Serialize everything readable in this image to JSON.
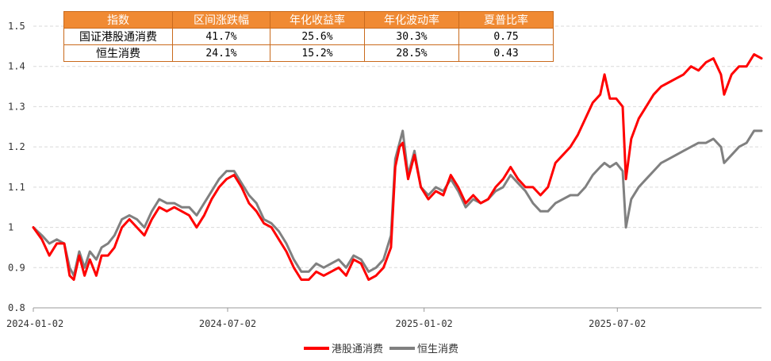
{
  "table": {
    "headers": [
      "指数",
      "区间涨跌幅",
      "年化收益率",
      "年化波动率",
      "夏普比率"
    ],
    "rows": [
      [
        "国证港股通消费",
        "41.7%",
        "25.6%",
        "30.3%",
        "0.75"
      ],
      [
        "恒生消费",
        "24.1%",
        "15.2%",
        "28.5%",
        "0.43"
      ]
    ],
    "header_color": "#f08a33"
  },
  "chart_data": {
    "type": "line",
    "ylim": [
      0.8,
      1.5
    ],
    "yticks": [
      "0.8",
      "0.9",
      "1",
      "1.1",
      "1.2",
      "1.3",
      "1.4",
      "1.5"
    ],
    "xticks": [
      "2024-01-02",
      "2024-07-02",
      "2025-01-02",
      "2025-07-02"
    ],
    "grid": true,
    "legend_position": "bottom",
    "series": [
      {
        "name": "港股通消费",
        "color": "#ff0000",
        "points": [
          [
            "2024-01-02",
            1.0
          ],
          [
            "2024-01-10",
            0.97
          ],
          [
            "2024-01-17",
            0.93
          ],
          [
            "2024-01-24",
            0.96
          ],
          [
            "2024-01-31",
            0.96
          ],
          [
            "2024-02-05",
            0.88
          ],
          [
            "2024-02-09",
            0.87
          ],
          [
            "2024-02-14",
            0.93
          ],
          [
            "2024-02-19",
            0.88
          ],
          [
            "2024-02-24",
            0.92
          ],
          [
            "2024-03-01",
            0.88
          ],
          [
            "2024-03-06",
            0.93
          ],
          [
            "2024-03-12",
            0.93
          ],
          [
            "2024-03-18",
            0.95
          ],
          [
            "2024-03-25",
            1.0
          ],
          [
            "2024-04-01",
            1.02
          ],
          [
            "2024-04-08",
            1.0
          ],
          [
            "2024-04-15",
            0.98
          ],
          [
            "2024-04-22",
            1.02
          ],
          [
            "2024-04-29",
            1.05
          ],
          [
            "2024-05-06",
            1.04
          ],
          [
            "2024-05-13",
            1.05
          ],
          [
            "2024-05-20",
            1.04
          ],
          [
            "2024-05-27",
            1.03
          ],
          [
            "2024-06-03",
            1.0
          ],
          [
            "2024-06-10",
            1.03
          ],
          [
            "2024-06-17",
            1.07
          ],
          [
            "2024-06-24",
            1.1
          ],
          [
            "2024-07-01",
            1.12
          ],
          [
            "2024-07-08",
            1.13
          ],
          [
            "2024-07-15",
            1.1
          ],
          [
            "2024-07-22",
            1.06
          ],
          [
            "2024-07-29",
            1.04
          ],
          [
            "2024-08-05",
            1.01
          ],
          [
            "2024-08-12",
            1.0
          ],
          [
            "2024-08-19",
            0.97
          ],
          [
            "2024-08-26",
            0.94
          ],
          [
            "2024-09-02",
            0.9
          ],
          [
            "2024-09-09",
            0.87
          ],
          [
            "2024-09-16",
            0.87
          ],
          [
            "2024-09-23",
            0.89
          ],
          [
            "2024-09-30",
            0.88
          ],
          [
            "2024-10-07",
            0.89
          ],
          [
            "2024-10-14",
            0.9
          ],
          [
            "2024-10-21",
            0.88
          ],
          [
            "2024-10-28",
            0.92
          ],
          [
            "2024-11-04",
            0.91
          ],
          [
            "2024-11-11",
            0.87
          ],
          [
            "2024-11-18",
            0.88
          ],
          [
            "2024-11-25",
            0.9
          ],
          [
            "2024-12-02",
            0.95
          ],
          [
            "2024-12-06",
            1.15
          ],
          [
            "2024-12-10",
            1.2
          ],
          [
            "2024-12-13",
            1.21
          ],
          [
            "2024-12-18",
            1.12
          ],
          [
            "2024-12-24",
            1.18
          ],
          [
            "2024-12-30",
            1.1
          ],
          [
            "2025-01-06",
            1.07
          ],
          [
            "2025-01-13",
            1.09
          ],
          [
            "2025-01-20",
            1.08
          ],
          [
            "2025-01-27",
            1.13
          ],
          [
            "2025-02-03",
            1.1
          ],
          [
            "2025-02-10",
            1.06
          ],
          [
            "2025-02-17",
            1.08
          ],
          [
            "2025-02-24",
            1.06
          ],
          [
            "2025-03-03",
            1.07
          ],
          [
            "2025-03-10",
            1.1
          ],
          [
            "2025-03-17",
            1.12
          ],
          [
            "2025-03-24",
            1.15
          ],
          [
            "2025-03-31",
            1.12
          ],
          [
            "2025-04-07",
            1.1
          ],
          [
            "2025-04-14",
            1.1
          ],
          [
            "2025-04-21",
            1.08
          ],
          [
            "2025-04-28",
            1.1
          ],
          [
            "2025-05-05",
            1.16
          ],
          [
            "2025-05-12",
            1.18
          ],
          [
            "2025-05-19",
            1.2
          ],
          [
            "2025-05-26",
            1.23
          ],
          [
            "2025-06-02",
            1.27
          ],
          [
            "2025-06-09",
            1.31
          ],
          [
            "2025-06-16",
            1.33
          ],
          [
            "2025-06-20",
            1.38
          ],
          [
            "2025-06-25",
            1.32
          ],
          [
            "2025-07-01",
            1.32
          ],
          [
            "2025-07-07",
            1.3
          ],
          [
            "2025-07-10",
            1.12
          ],
          [
            "2025-07-15",
            1.22
          ],
          [
            "2025-07-22",
            1.27
          ],
          [
            "2025-07-29",
            1.3
          ],
          [
            "2025-08-05",
            1.33
          ],
          [
            "2025-08-12",
            1.35
          ],
          [
            "2025-08-19",
            1.36
          ],
          [
            "2025-08-26",
            1.37
          ],
          [
            "2025-09-02",
            1.38
          ],
          [
            "2025-09-09",
            1.4
          ],
          [
            "2025-09-16",
            1.39
          ],
          [
            "2025-09-23",
            1.41
          ],
          [
            "2025-09-30",
            1.42
          ],
          [
            "2025-10-07",
            1.38
          ],
          [
            "2025-10-10",
            1.33
          ],
          [
            "2025-10-17",
            1.38
          ],
          [
            "2025-10-24",
            1.4
          ],
          [
            "2025-10-31",
            1.4
          ],
          [
            "2025-11-07",
            1.43
          ],
          [
            "2025-11-14",
            1.42
          ]
        ]
      },
      {
        "name": "恒生消费",
        "color": "#808080",
        "points": [
          [
            "2024-01-02",
            1.0
          ],
          [
            "2024-01-10",
            0.98
          ],
          [
            "2024-01-17",
            0.96
          ],
          [
            "2024-01-24",
            0.97
          ],
          [
            "2024-01-31",
            0.96
          ],
          [
            "2024-02-05",
            0.9
          ],
          [
            "2024-02-09",
            0.88
          ],
          [
            "2024-02-14",
            0.94
          ],
          [
            "2024-02-19",
            0.9
          ],
          [
            "2024-02-24",
            0.94
          ],
          [
            "2024-03-01",
            0.92
          ],
          [
            "2024-03-06",
            0.95
          ],
          [
            "2024-03-12",
            0.96
          ],
          [
            "2024-03-18",
            0.98
          ],
          [
            "2024-03-25",
            1.02
          ],
          [
            "2024-04-01",
            1.03
          ],
          [
            "2024-04-08",
            1.02
          ],
          [
            "2024-04-15",
            1.0
          ],
          [
            "2024-04-22",
            1.04
          ],
          [
            "2024-04-29",
            1.07
          ],
          [
            "2024-05-06",
            1.06
          ],
          [
            "2024-05-13",
            1.06
          ],
          [
            "2024-05-20",
            1.05
          ],
          [
            "2024-05-27",
            1.05
          ],
          [
            "2024-06-03",
            1.03
          ],
          [
            "2024-06-10",
            1.06
          ],
          [
            "2024-06-17",
            1.09
          ],
          [
            "2024-06-24",
            1.12
          ],
          [
            "2024-07-01",
            1.14
          ],
          [
            "2024-07-08",
            1.14
          ],
          [
            "2024-07-15",
            1.11
          ],
          [
            "2024-07-22",
            1.08
          ],
          [
            "2024-07-29",
            1.06
          ],
          [
            "2024-08-05",
            1.02
          ],
          [
            "2024-08-12",
            1.01
          ],
          [
            "2024-08-19",
            0.99
          ],
          [
            "2024-08-26",
            0.96
          ],
          [
            "2024-09-02",
            0.92
          ],
          [
            "2024-09-09",
            0.89
          ],
          [
            "2024-09-16",
            0.89
          ],
          [
            "2024-09-23",
            0.91
          ],
          [
            "2024-09-30",
            0.9
          ],
          [
            "2024-10-07",
            0.91
          ],
          [
            "2024-10-14",
            0.92
          ],
          [
            "2024-10-21",
            0.9
          ],
          [
            "2024-10-28",
            0.93
          ],
          [
            "2024-11-04",
            0.92
          ],
          [
            "2024-11-11",
            0.89
          ],
          [
            "2024-11-18",
            0.9
          ],
          [
            "2024-11-25",
            0.92
          ],
          [
            "2024-12-02",
            0.98
          ],
          [
            "2024-12-06",
            1.17
          ],
          [
            "2024-12-10",
            1.21
          ],
          [
            "2024-12-13",
            1.24
          ],
          [
            "2024-12-18",
            1.13
          ],
          [
            "2024-12-24",
            1.19
          ],
          [
            "2024-12-30",
            1.1
          ],
          [
            "2025-01-06",
            1.08
          ],
          [
            "2025-01-13",
            1.1
          ],
          [
            "2025-01-20",
            1.09
          ],
          [
            "2025-01-27",
            1.12
          ],
          [
            "2025-02-03",
            1.09
          ],
          [
            "2025-02-10",
            1.05
          ],
          [
            "2025-02-17",
            1.07
          ],
          [
            "2025-02-24",
            1.06
          ],
          [
            "2025-03-03",
            1.07
          ],
          [
            "2025-03-10",
            1.09
          ],
          [
            "2025-03-17",
            1.1
          ],
          [
            "2025-03-24",
            1.13
          ],
          [
            "2025-03-31",
            1.11
          ],
          [
            "2025-04-07",
            1.09
          ],
          [
            "2025-04-14",
            1.06
          ],
          [
            "2025-04-21",
            1.04
          ],
          [
            "2025-04-28",
            1.04
          ],
          [
            "2025-05-05",
            1.06
          ],
          [
            "2025-05-12",
            1.07
          ],
          [
            "2025-05-19",
            1.08
          ],
          [
            "2025-05-26",
            1.08
          ],
          [
            "2025-06-02",
            1.1
          ],
          [
            "2025-06-09",
            1.13
          ],
          [
            "2025-06-16",
            1.15
          ],
          [
            "2025-06-20",
            1.16
          ],
          [
            "2025-06-25",
            1.15
          ],
          [
            "2025-07-01",
            1.16
          ],
          [
            "2025-07-07",
            1.14
          ],
          [
            "2025-07-10",
            1.0
          ],
          [
            "2025-07-15",
            1.07
          ],
          [
            "2025-07-22",
            1.1
          ],
          [
            "2025-07-29",
            1.12
          ],
          [
            "2025-08-05",
            1.14
          ],
          [
            "2025-08-12",
            1.16
          ],
          [
            "2025-08-19",
            1.17
          ],
          [
            "2025-08-26",
            1.18
          ],
          [
            "2025-09-02",
            1.19
          ],
          [
            "2025-09-09",
            1.2
          ],
          [
            "2025-09-16",
            1.21
          ],
          [
            "2025-09-23",
            1.21
          ],
          [
            "2025-09-30",
            1.22
          ],
          [
            "2025-10-07",
            1.2
          ],
          [
            "2025-10-10",
            1.16
          ],
          [
            "2025-10-17",
            1.18
          ],
          [
            "2025-10-24",
            1.2
          ],
          [
            "2025-10-31",
            1.21
          ],
          [
            "2025-11-07",
            1.24
          ],
          [
            "2025-11-14",
            1.24
          ]
        ]
      }
    ]
  }
}
